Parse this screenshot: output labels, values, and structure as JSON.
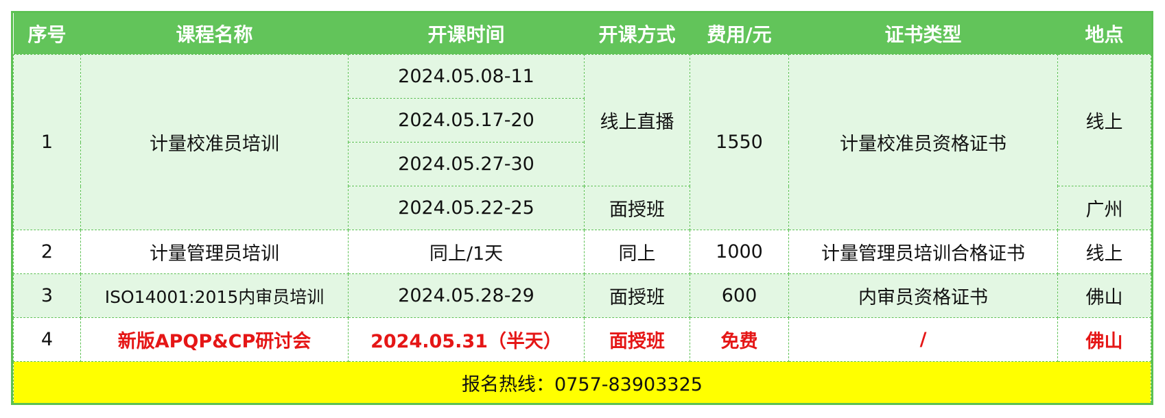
{
  "colors": {
    "header": "#62c45a",
    "light_row": "#e3f7e3",
    "border": "#5cc153",
    "highlight_text": "#e51616",
    "footer": "#ffff00"
  },
  "headers": [
    "序号",
    "课程名称",
    "开课时间",
    "开课方式",
    "费用/元",
    "证书类型",
    "地点"
  ],
  "rows": [
    {
      "seq": "1",
      "name": "计量校准员培训",
      "dates": [
        "2024.05.08-11",
        "2024.05.17-20",
        "2024.05.27-30",
        "2024.05.22-25"
      ],
      "modes": [
        "线上直播",
        "面授班"
      ],
      "fee": "1550",
      "cert": "计量校准员资格证书",
      "locations": [
        "线上",
        "广州"
      ]
    },
    {
      "seq": "2",
      "name": "计量管理员培训",
      "date": "同上/1天",
      "mode": "同上",
      "fee": "1000",
      "cert": "计量管理员培训合格证书",
      "location": "线上"
    },
    {
      "seq": "3",
      "name": "ISO14001:2015内审员培训",
      "date": "2024.05.28-29",
      "mode": "面授班",
      "fee": "600",
      "cert": "内审员资格证书",
      "location": "佛山"
    },
    {
      "seq": "4",
      "name": "新版APQP&CP研讨会",
      "date": "2024.05.31（半天）",
      "mode": "面授班",
      "fee": "免费",
      "cert": "/",
      "location": "佛山"
    }
  ],
  "footer": "报名热线：0757-83903325"
}
